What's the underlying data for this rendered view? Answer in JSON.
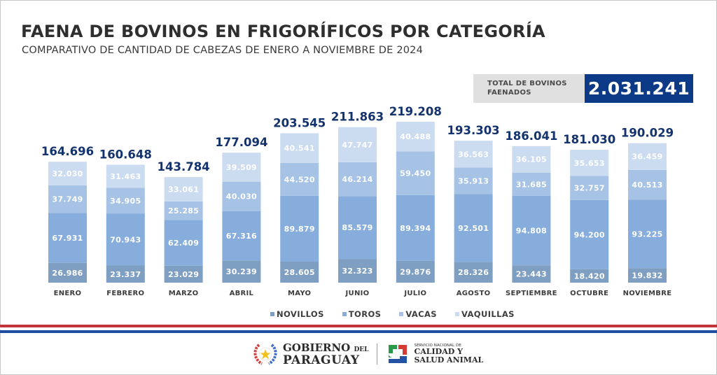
{
  "header": {
    "title": "FAENA DE BOVINOS EN FRIGORÍFICOS POR CATEGORÍA",
    "subtitle": "COMPARATIVO DE CANTIDAD DE CABEZAS DE ENERO A NOVIEMBRE DE 2024"
  },
  "total": {
    "label_line1": "TOTAL DE BOVINOS",
    "label_line2": "FAENADOS",
    "value": "2.031.241"
  },
  "colors": {
    "title_dark": "#2e2e2e",
    "total_blue": "#0d3a86",
    "value_label": "#14336e",
    "novillos": "#7f9fc2",
    "toros": "#86addb",
    "vacas": "#a6c3e6",
    "vaquillas": "#ccdcf0",
    "flag_red": "#c0343a",
    "flag_blue": "#1f4ea0"
  },
  "legend": [
    {
      "key": "novillos",
      "label": "NOVILLOS"
    },
    {
      "key": "toros",
      "label": "TOROS"
    },
    {
      "key": "vacas",
      "label": "VACAS"
    },
    {
      "key": "vaquillas",
      "label": "VAQUILLAS"
    }
  ],
  "footer": {
    "gob_line1": "GOBIERNO",
    "gob_del": "DEL",
    "gob_line2": "PARAGUAY",
    "senacsa_line1": "SERVICIO NACIONAL DE",
    "senacsa_line2": "CALIDAD Y",
    "senacsa_line3": "SALUD ANIMAL"
  },
  "chart_data": {
    "type": "bar",
    "stacked": true,
    "title": "FAENA DE BOVINOS EN FRIGORÍFICOS POR CATEGORÍA",
    "subtitle": "COMPARATIVO DE CANTIDAD DE CABEZAS DE ENERO A NOVIEMBRE DE 2024",
    "xlabel": "",
    "ylabel": "",
    "grid": false,
    "legend_position": "bottom",
    "categories": [
      "ENERO",
      "FEBRERO",
      "MARZO",
      "ABRIL",
      "MAYO",
      "JUNIO",
      "JULIO",
      "AGOSTO",
      "SEPTIEMBRE",
      "OCTUBRE",
      "NOVIEMBRE"
    ],
    "series": [
      {
        "name": "NOVILLOS",
        "key": "novillos",
        "values": [
          26986,
          23337,
          23029,
          30239,
          28605,
          32323,
          29876,
          28326,
          23443,
          18420,
          19832
        ],
        "labels": [
          "26.986",
          "23.337",
          "23.029",
          "30.239",
          "28.605",
          "32.323",
          "29.876",
          "28.326",
          "23.443",
          "18.420",
          "19.832"
        ]
      },
      {
        "name": "TOROS",
        "key": "toros",
        "values": [
          67931,
          70943,
          62409,
          67316,
          89879,
          85579,
          89394,
          92501,
          94808,
          94200,
          93225
        ],
        "labels": [
          "67.931",
          "70.943",
          "62.409",
          "67.316",
          "89.879",
          "85.579",
          "89.394",
          "92.501",
          "94.808",
          "94.200",
          "93.225"
        ]
      },
      {
        "name": "VACAS",
        "key": "vacas",
        "values": [
          37749,
          34905,
          25285,
          40030,
          44520,
          46214,
          59450,
          35913,
          31685,
          32757,
          40513
        ],
        "labels": [
          "37.749",
          "34.905",
          "25.285",
          "40.030",
          "44.520",
          "46.214",
          "59.450",
          "35.913",
          "31.685",
          "32.757",
          "40.513"
        ]
      },
      {
        "name": "VAQUILLAS",
        "key": "vaquillas",
        "values": [
          32030,
          31463,
          33061,
          39509,
          40541,
          47747,
          40488,
          36563,
          36105,
          35653,
          36459
        ],
        "labels": [
          "32.030",
          "31.463",
          "33.061",
          "39.509",
          "40.541",
          "47.747",
          "40.488",
          "36.563",
          "36.105",
          "35.653",
          "36.459"
        ]
      }
    ],
    "totals": [
      164696,
      160648,
      143784,
      177094,
      203545,
      211863,
      219208,
      193303,
      186041,
      181030,
      190029
    ],
    "total_labels": [
      "164.696",
      "160.648",
      "143.784",
      "177.094",
      "203.545",
      "211.863",
      "219.208",
      "193.303",
      "186.041",
      "181.030",
      "190.029"
    ],
    "ylim": [
      0,
      219208
    ]
  }
}
